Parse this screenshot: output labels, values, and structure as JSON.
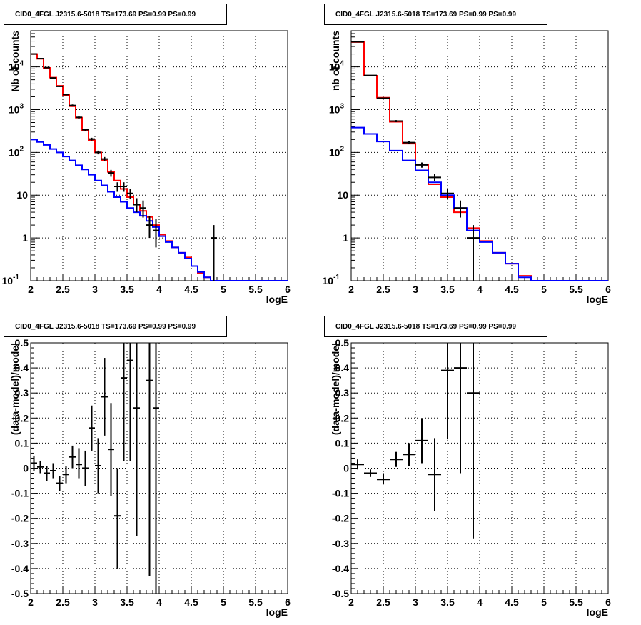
{
  "chart_data": [
    {
      "type": "line",
      "title": "CID0_4FGL J2315.6-5018 TS=173.69 PS=0.99 PS=0.99",
      "xlabel": "logE",
      "ylabel": "Nb of counts",
      "yscale": "log",
      "xlim": [
        2,
        6
      ],
      "ylim": [
        0.1,
        70000
      ],
      "grid": true,
      "x_ticks": [
        "2",
        "2.5",
        "3",
        "3.5",
        "4",
        "4.5",
        "5",
        "5.5",
        "6"
      ],
      "y_ticks": [
        "10^-1",
        "1",
        "10",
        "10^2",
        "10^3",
        "10^4"
      ],
      "bin_edges": [
        2.0,
        2.1,
        2.2,
        2.3,
        2.4,
        2.5,
        2.6,
        2.7,
        2.8,
        2.9,
        3.0,
        3.1,
        3.2,
        3.3,
        3.4,
        3.5,
        3.6,
        3.7,
        3.8,
        3.9,
        4.0,
        4.1,
        4.2,
        4.3,
        4.4,
        4.5,
        4.6,
        4.7,
        4.8,
        4.9,
        5.0,
        5.1,
        5.2,
        5.3,
        5.4,
        5.5,
        5.6,
        5.7,
        5.8,
        5.9,
        6.0
      ],
      "series": [
        {
          "color": "#ff0000",
          "kind": "step",
          "values": [
            20000,
            15500,
            9500,
            5600,
            3600,
            2200,
            1200,
            650,
            330,
            190,
            100,
            65,
            35,
            22,
            14,
            9,
            6,
            4.3,
            3.1,
            2.0,
            1.2,
            0.85,
            0.6,
            0.45,
            0.35,
            0.22,
            0.15,
            0.12,
            0.1,
            0.1,
            0.1,
            0.1,
            0.1,
            0.1,
            0.1,
            0.1,
            0.1,
            0.1,
            0.1,
            0.1
          ]
        },
        {
          "color": "#0000ff",
          "kind": "step",
          "values": [
            200,
            175,
            150,
            120,
            100,
            80,
            65,
            50,
            40,
            30,
            22,
            17,
            12,
            9,
            7,
            5,
            4,
            3.3,
            2.5,
            1.8,
            1.1,
            0.8,
            0.6,
            0.45,
            0.33,
            0.22,
            0.16,
            0.12,
            0.1,
            0.1,
            0.1,
            0.1,
            0.1,
            0.1,
            0.1,
            0.1,
            0.1,
            0.1,
            0.1,
            0.1
          ]
        },
        {
          "color": "#000000",
          "kind": "points",
          "points": [
            {
              "x": 2.05,
              "y": 20000,
              "lo": 19500,
              "hi": 20500
            },
            {
              "x": 2.15,
              "y": 15600,
              "lo": 15200,
              "hi": 16000
            },
            {
              "x": 2.25,
              "y": 9600,
              "lo": 9400,
              "hi": 9800
            },
            {
              "x": 2.35,
              "y": 5500,
              "lo": 5350,
              "hi": 5650
            },
            {
              "x": 2.45,
              "y": 3500,
              "lo": 3400,
              "hi": 3600
            },
            {
              "x": 2.55,
              "y": 2250,
              "lo": 2150,
              "hi": 2350
            },
            {
              "x": 2.65,
              "y": 1250,
              "lo": 1180,
              "hi": 1320
            },
            {
              "x": 2.75,
              "y": 660,
              "lo": 610,
              "hi": 710
            },
            {
              "x": 2.85,
              "y": 340,
              "lo": 320,
              "hi": 360
            },
            {
              "x": 2.95,
              "y": 205,
              "lo": 190,
              "hi": 220
            },
            {
              "x": 3.05,
              "y": 100,
              "lo": 90,
              "hi": 110
            },
            {
              "x": 3.15,
              "y": 70,
              "lo": 62,
              "hi": 78
            },
            {
              "x": 3.25,
              "y": 33,
              "lo": 27,
              "hi": 39
            },
            {
              "x": 3.35,
              "y": 16,
              "lo": 12,
              "hi": 20
            },
            {
              "x": 3.45,
              "y": 16,
              "lo": 12,
              "hi": 20
            },
            {
              "x": 3.55,
              "y": 11,
              "lo": 8,
              "hi": 14
            },
            {
              "x": 3.65,
              "y": 6,
              "lo": 4,
              "hi": 8.5
            },
            {
              "x": 3.75,
              "y": 5,
              "lo": 3,
              "hi": 7.5
            },
            {
              "x": 3.85,
              "y": 2,
              "lo": 1,
              "hi": 3.2
            },
            {
              "x": 3.95,
              "y": 1.5,
              "lo": 0.6,
              "hi": 2.8
            },
            {
              "x": 4.85,
              "y": 1,
              "lo": 0.1,
              "hi": 2.0
            }
          ]
        }
      ]
    },
    {
      "type": "line",
      "title": "CID0_4FGL J2315.6-5018 TS=173.69 PS=0.99 PS=0.99",
      "xlabel": "logE",
      "ylabel": "nb of counts",
      "yscale": "log",
      "xlim": [
        2,
        6
      ],
      "ylim": [
        0.1,
        70000
      ],
      "grid": true,
      "x_ticks": [
        "2",
        "2.5",
        "3",
        "3.5",
        "4",
        "4.5",
        "5",
        "5.5",
        "6"
      ],
      "y_ticks": [
        "10^-1",
        "1",
        "10",
        "10^2",
        "10^3",
        "10^4"
      ],
      "bin_edges": [
        2.0,
        2.2,
        2.4,
        2.6,
        2.8,
        3.0,
        3.2,
        3.4,
        3.6,
        3.8,
        4.0,
        4.2,
        4.4,
        4.6,
        4.8,
        5.0,
        5.2,
        5.4,
        5.6,
        5.8,
        6.0
      ],
      "series": [
        {
          "color": "#ff0000",
          "kind": "step",
          "values": [
            38000,
            6200,
            1900,
            520,
            160,
            52,
            18,
            9,
            4,
            1.7,
            0.85,
            0.45,
            0.25,
            0.13,
            0.1,
            0.1,
            0.1,
            0.1,
            0.1,
            0.1
          ]
        },
        {
          "color": "#0000ff",
          "kind": "step",
          "values": [
            380,
            270,
            180,
            110,
            65,
            38,
            20,
            10,
            5,
            1.5,
            0.8,
            0.45,
            0.25,
            0.12,
            0.1,
            0.1,
            0.1,
            0.1,
            0.1,
            0.1
          ]
        },
        {
          "color": "#000000",
          "kind": "points",
          "points": [
            {
              "x": 2.1,
              "y": 38500,
              "lo": 38000,
              "hi": 39000
            },
            {
              "x": 2.3,
              "y": 6300,
              "lo": 6150,
              "hi": 6450
            },
            {
              "x": 2.5,
              "y": 1850,
              "lo": 1780,
              "hi": 1920
            },
            {
              "x": 2.7,
              "y": 540,
              "lo": 510,
              "hi": 570
            },
            {
              "x": 2.9,
              "y": 170,
              "lo": 155,
              "hi": 185
            },
            {
              "x": 3.1,
              "y": 51,
              "lo": 44,
              "hi": 58
            },
            {
              "x": 3.3,
              "y": 26,
              "lo": 21,
              "hi": 31
            },
            {
              "x": 3.5,
              "y": 11,
              "lo": 8,
              "hi": 14
            },
            {
              "x": 3.7,
              "y": 5,
              "lo": 3,
              "hi": 7.5
            },
            {
              "x": 3.9,
              "y": 1,
              "lo": 0.1,
              "hi": 2.0
            }
          ]
        }
      ]
    },
    {
      "type": "scatter",
      "title": "CID0_4FGL J2315.6-5018 TS=173.69 PS=0.99 PS=0.99",
      "xlabel": "logE",
      "ylabel": "(data-model)/model",
      "xlim": [
        2,
        6
      ],
      "ylim": [
        -0.5,
        0.5
      ],
      "grid": true,
      "x_ticks": [
        "2",
        "2.5",
        "3",
        "3.5",
        "4",
        "4.5",
        "5",
        "5.5",
        "6"
      ],
      "y_ticks": [
        "-0.5",
        "-0.4",
        "-0.3",
        "-0.2",
        "-0.1",
        "0",
        "0.1",
        "0.2",
        "0.3",
        "0.4",
        "0.5"
      ],
      "bin_width": 0.1,
      "points": [
        {
          "x": 2.05,
          "y": 0.02,
          "lo": -0.01,
          "hi": 0.05
        },
        {
          "x": 2.15,
          "y": 0.005,
          "lo": -0.02,
          "hi": 0.03
        },
        {
          "x": 2.25,
          "y": -0.02,
          "lo": -0.05,
          "hi": 0.01
        },
        {
          "x": 2.35,
          "y": -0.01,
          "lo": -0.04,
          "hi": 0.02
        },
        {
          "x": 2.45,
          "y": -0.06,
          "lo": -0.09,
          "hi": -0.03
        },
        {
          "x": 2.55,
          "y": -0.025,
          "lo": -0.06,
          "hi": 0.01
        },
        {
          "x": 2.65,
          "y": 0.045,
          "lo": 0.0,
          "hi": 0.09
        },
        {
          "x": 2.75,
          "y": 0.015,
          "lo": -0.04,
          "hi": 0.08
        },
        {
          "x": 2.85,
          "y": 0.0,
          "lo": -0.07,
          "hi": 0.07
        },
        {
          "x": 2.95,
          "y": 0.16,
          "lo": 0.07,
          "hi": 0.25
        },
        {
          "x": 3.05,
          "y": 0.01,
          "lo": -0.1,
          "hi": 0.12
        },
        {
          "x": 3.15,
          "y": 0.285,
          "lo": 0.13,
          "hi": 0.44
        },
        {
          "x": 3.25,
          "y": 0.075,
          "lo": -0.11,
          "hi": 0.26
        },
        {
          "x": 3.35,
          "y": -0.19,
          "lo": -0.4,
          "hi": 0.0
        },
        {
          "x": 3.45,
          "y": 0.36,
          "lo": 0.03,
          "hi": 0.7
        },
        {
          "x": 3.55,
          "y": 0.43,
          "lo": 0.03,
          "hi": 0.84
        },
        {
          "x": 3.65,
          "y": 0.24,
          "lo": -0.27,
          "hi": 0.75
        },
        {
          "x": 3.85,
          "y": 0.35,
          "lo": -0.43,
          "hi": 1.1
        },
        {
          "x": 3.95,
          "y": 0.24,
          "lo": -0.6,
          "hi": 1.1
        }
      ]
    },
    {
      "type": "scatter",
      "title": "CID0_4FGL J2315.6-5018 TS=173.69 PS=0.99 PS=0.99",
      "xlabel": "logE",
      "ylabel": "(data-model)/model",
      "xlim": [
        2,
        6
      ],
      "ylim": [
        -0.5,
        0.5
      ],
      "grid": true,
      "x_ticks": [
        "2",
        "2.5",
        "3",
        "3.5",
        "4",
        "4.5",
        "5",
        "5.5",
        "6"
      ],
      "y_ticks": [
        "-0.5",
        "-0.4",
        "-0.3",
        "-0.2",
        "-0.1",
        "0",
        "0.1",
        "0.2",
        "0.3",
        "0.4",
        "0.5"
      ],
      "bin_width": 0.2,
      "points": [
        {
          "x": 2.1,
          "y": 0.015,
          "lo": -0.005,
          "hi": 0.035
        },
        {
          "x": 2.3,
          "y": -0.02,
          "lo": -0.035,
          "hi": -0.005
        },
        {
          "x": 2.5,
          "y": -0.045,
          "lo": -0.065,
          "hi": -0.02
        },
        {
          "x": 2.7,
          "y": 0.035,
          "lo": 0.005,
          "hi": 0.065
        },
        {
          "x": 2.9,
          "y": 0.055,
          "lo": 0.01,
          "hi": 0.1
        },
        {
          "x": 3.1,
          "y": 0.11,
          "lo": 0.02,
          "hi": 0.2
        },
        {
          "x": 3.3,
          "y": -0.025,
          "lo": -0.17,
          "hi": 0.12
        },
        {
          "x": 3.5,
          "y": 0.39,
          "lo": 0.115,
          "hi": 0.66
        },
        {
          "x": 3.7,
          "y": 0.4,
          "lo": -0.02,
          "hi": 0.82
        },
        {
          "x": 3.9,
          "y": 0.3,
          "lo": -0.28,
          "hi": 0.88
        }
      ]
    }
  ]
}
